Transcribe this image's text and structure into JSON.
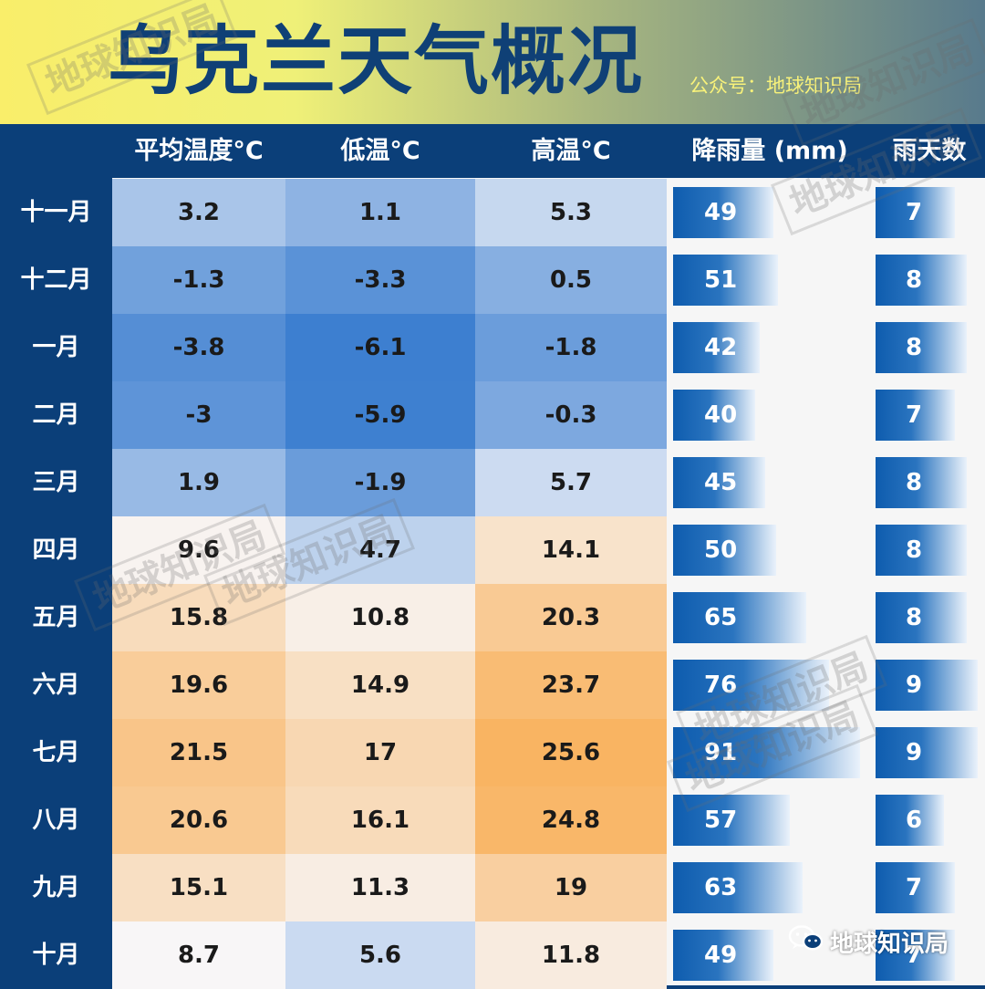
{
  "header": {
    "title": "乌克兰天气概况",
    "account": "公众号：地球知识局",
    "watermark": "地球知识局"
  },
  "footer": {
    "brand": "地球知识局",
    "icon": "wechat-icon"
  },
  "colors": {
    "cold": "#3d7fd0",
    "neutral": "#f8f8fb",
    "warm": "#f9b25e",
    "bar": "#0e5cae",
    "navy": "#0b3f79"
  },
  "chart_data": {
    "type": "table",
    "title": "乌克兰天气概况",
    "columns": [
      "平均温度°C",
      "低温°C",
      "高温°C",
      "降雨量 (mm)",
      "雨天数"
    ],
    "months": [
      "十一月",
      "十二月",
      "一月",
      "二月",
      "三月",
      "四月",
      "五月",
      "六月",
      "七月",
      "八月",
      "九月",
      "十月"
    ],
    "series": [
      {
        "name": "平均温度°C",
        "values": [
          3.2,
          -1.3,
          -3.8,
          -3,
          1.9,
          9.6,
          15.8,
          19.6,
          21.5,
          20.6,
          15.1,
          8.7
        ]
      },
      {
        "name": "低温°C",
        "values": [
          1.1,
          -3.3,
          -6.1,
          -5.9,
          -1.9,
          4.7,
          10.8,
          14.9,
          17,
          16.1,
          11.3,
          5.6
        ]
      },
      {
        "name": "高温°C",
        "values": [
          5.3,
          0.5,
          -1.8,
          -0.3,
          5.7,
          14.1,
          20.3,
          23.7,
          25.6,
          24.8,
          19,
          11.8
        ]
      },
      {
        "name": "降雨量 (mm)",
        "values": [
          49,
          51,
          42,
          40,
          45,
          50,
          65,
          76,
          91,
          57,
          63,
          49
        ]
      },
      {
        "name": "雨天数",
        "values": [
          7,
          8,
          8,
          7,
          8,
          8,
          8,
          9,
          9,
          6,
          7,
          7
        ]
      }
    ],
    "rain_scale_max": 91,
    "days_scale_max": 9
  }
}
